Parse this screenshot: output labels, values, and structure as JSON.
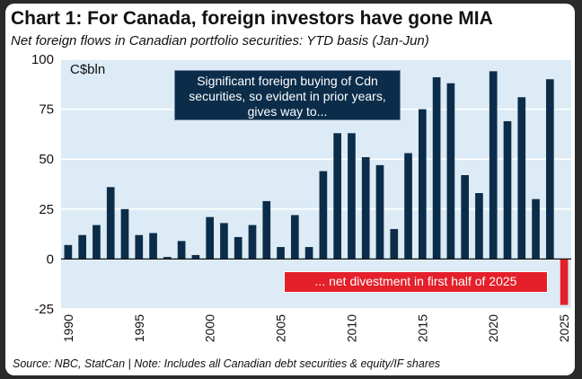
{
  "title": "Chart 1: For Canada, foreign investors have gone MIA",
  "subtitle": "Net foreign flows in Canadian portfolio securities: YTD basis (Jan-Jun)",
  "source": "Source: NBC, StatCan | Note: Includes all Canadian debt securities & equity/IF shares",
  "annotations": {
    "top_note": "Significant foreign buying of Cdn securities, so evident in prior years, gives way to...",
    "bottom_note": "... net divestment in first half of 2025"
  },
  "colors": {
    "bar": "#0c2d4a",
    "negative_bar": "#e4202a",
    "plot_background": "#dcebf5",
    "gridline": "#ffffff"
  },
  "chart_data": {
    "type": "bar",
    "title": "Chart 1: For Canada, foreign investors have gone MIA",
    "subtitle": "Net foreign flows in Canadian portfolio securities: YTD basis (Jan-Jun)",
    "ylabel": "C$bln",
    "xlabel": "",
    "ylim": [
      -25,
      100
    ],
    "yticks": [
      -25,
      0,
      25,
      50,
      75,
      100
    ],
    "xticks": [
      1990,
      1995,
      2000,
      2005,
      2010,
      2015,
      2020,
      2025
    ],
    "grid": true,
    "categories": [
      1990,
      1991,
      1992,
      1993,
      1994,
      1995,
      1996,
      1997,
      1998,
      1999,
      2000,
      2001,
      2002,
      2003,
      2004,
      2005,
      2006,
      2007,
      2008,
      2009,
      2010,
      2011,
      2012,
      2013,
      2014,
      2015,
      2016,
      2017,
      2018,
      2019,
      2020,
      2021,
      2022,
      2023,
      2024,
      2025
    ],
    "values": [
      7,
      12,
      17,
      36,
      25,
      12,
      13,
      1,
      9,
      2,
      21,
      18,
      11,
      17,
      29,
      6,
      22,
      6,
      44,
      63,
      63,
      51,
      47,
      15,
      53,
      75,
      91,
      88,
      42,
      33,
      94,
      69,
      81,
      30,
      90,
      -23
    ]
  }
}
